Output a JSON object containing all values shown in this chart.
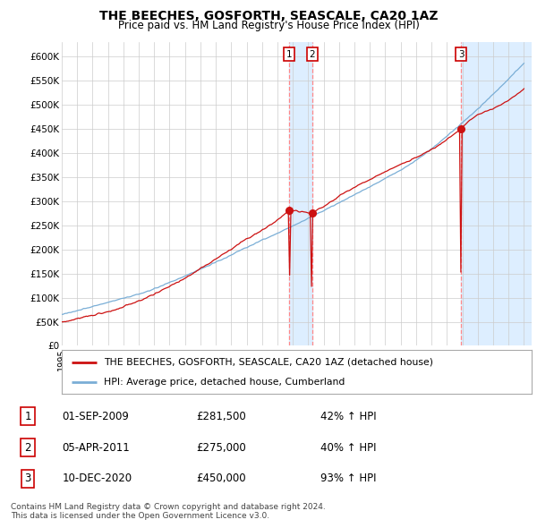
{
  "title": "THE BEECHES, GOSFORTH, SEASCALE, CA20 1AZ",
  "subtitle": "Price paid vs. HM Land Registry's House Price Index (HPI)",
  "ylabel_ticks": [
    "£0",
    "£50K",
    "£100K",
    "£150K",
    "£200K",
    "£250K",
    "£300K",
    "£350K",
    "£400K",
    "£450K",
    "£500K",
    "£550K",
    "£600K"
  ],
  "ylim": [
    0,
    630000
  ],
  "ytick_vals": [
    0,
    50000,
    100000,
    150000,
    200000,
    250000,
    300000,
    350000,
    400000,
    450000,
    500000,
    550000,
    600000
  ],
  "hpi_color": "#7aaed6",
  "property_color": "#cc1111",
  "sale_color": "#cc1111",
  "vline_color": "#ff8888",
  "shade_color": "#ddeeff",
  "background_color": "#ffffff",
  "grid_color": "#cccccc",
  "legend_label_property": "THE BEECHES, GOSFORTH, SEASCALE, CA20 1AZ (detached house)",
  "legend_label_hpi": "HPI: Average price, detached house, Cumberland",
  "sale_year_1": 2009.75,
  "sale_price_1": 281500,
  "sale_year_2": 2011.25,
  "sale_price_2": 275000,
  "sale_year_3": 2020.92,
  "sale_price_3": 450000,
  "footer": "Contains HM Land Registry data © Crown copyright and database right 2024.\nThis data is licensed under the Open Government Licence v3.0.",
  "x_start_year": 1995,
  "x_end_year": 2025
}
